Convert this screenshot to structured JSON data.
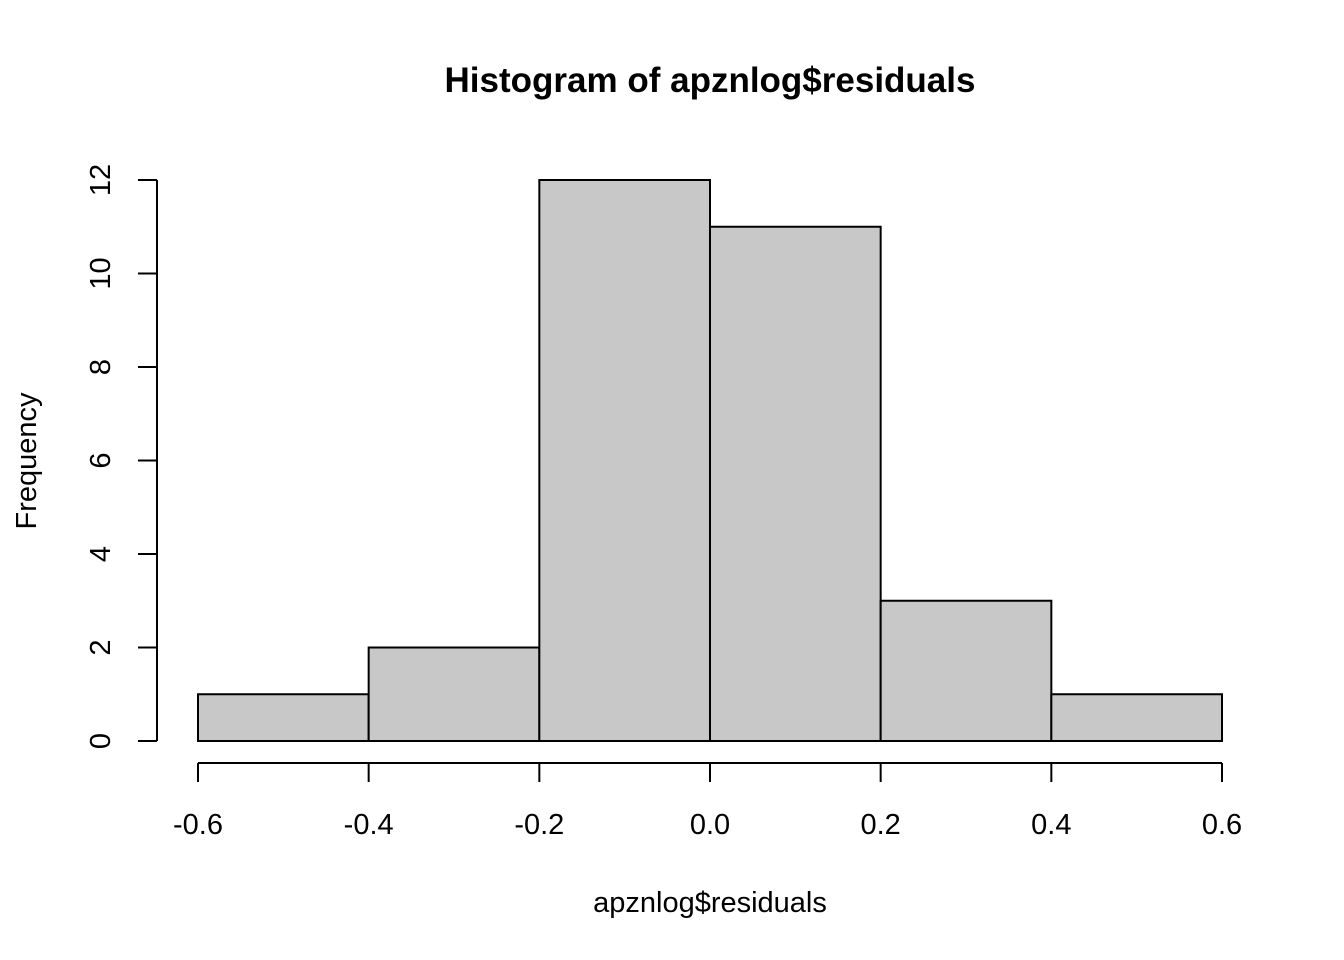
{
  "chart_data": {
    "type": "bar",
    "title": "Histogram of apznlog$residuals",
    "xlabel": "apznlog$residuals",
    "ylabel": "Frequency",
    "bin_edges": [
      -0.6,
      -0.4,
      -0.2,
      0.0,
      0.2,
      0.4,
      0.6
    ],
    "values": [
      1,
      2,
      12,
      11,
      3,
      1
    ],
    "xlim": [
      -0.6,
      0.6
    ],
    "ylim": [
      0,
      12
    ],
    "x_ticks": [
      -0.6,
      -0.4,
      -0.2,
      0.0,
      0.2,
      0.4,
      0.6
    ],
    "x_tick_labels": [
      "-0.6",
      "-0.4",
      "-0.2",
      "0.0",
      "0.2",
      "0.4",
      "0.6"
    ],
    "y_ticks": [
      0,
      2,
      4,
      6,
      8,
      10,
      12
    ],
    "y_tick_labels": [
      "0",
      "2",
      "4",
      "6",
      "8",
      "10",
      "12"
    ],
    "grid": false,
    "legend": "none",
    "bar_color": "#c8c8c8",
    "edge_color": "#000000"
  }
}
